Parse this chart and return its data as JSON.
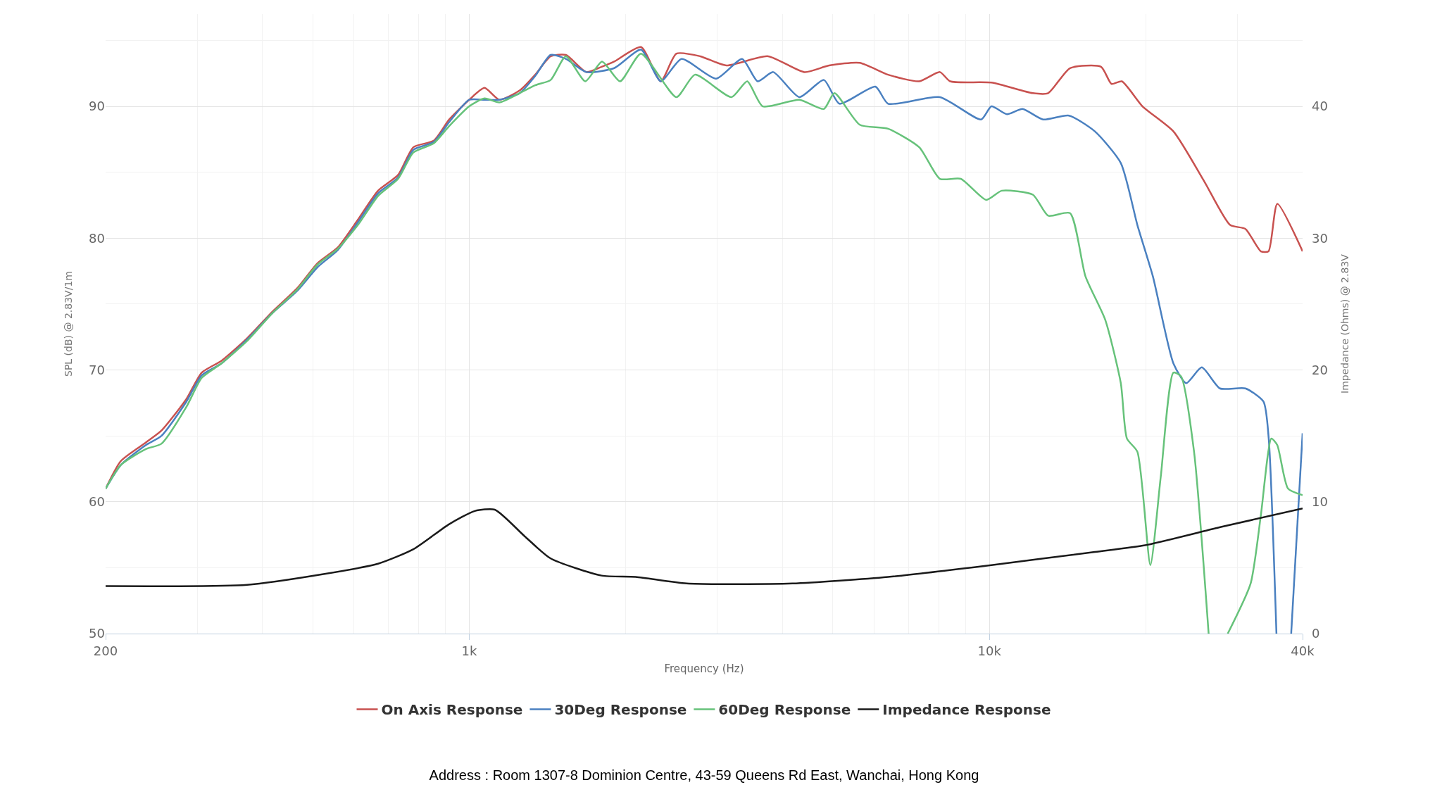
{
  "chart_data": {
    "type": "line",
    "xlabel": "Frequency (Hz)",
    "ylabel": "SPL (dB) @ 2.83V/1m",
    "y2label": "Impedance (Ohms) @ 2.83V",
    "log": "x",
    "grid": true,
    "legend": "bottom",
    "xlim": [
      200,
      40000
    ],
    "xticks": [
      200,
      {
        "value": 1000,
        "label": "1k"
      },
      {
        "value": 10000,
        "label": "10k"
      },
      {
        "value": 40000,
        "label": "40k"
      }
    ],
    "ylim": [
      50,
      97
    ],
    "yticks": [
      50,
      60,
      70,
      80,
      90
    ],
    "y2lim": [
      0,
      47
    ],
    "y2ticks": [
      0,
      10,
      20,
      30,
      40
    ],
    "series": [
      {
        "name": "On Axis Response",
        "color": "#c8514f",
        "x": [
          200,
          214,
          239,
          256,
          286,
          306,
          334,
          374,
          418,
          467,
          511,
          559,
          611,
          668,
          730,
          781,
          855,
          915,
          1000,
          1070,
          1143,
          1250,
          1339,
          1434,
          1534,
          1680,
          1797,
          1900,
          2139,
          2335,
          2502,
          2780,
          3122,
          3753,
          4410,
          4917,
          5634,
          6386,
          7330,
          8032,
          8404,
          10090,
          12120,
          12970,
          14290,
          16390,
          17170,
          17970,
          19690,
          22580,
          25890,
          29020,
          31060,
          33260,
          34400,
          35760,
          40000
        ],
        "values": [
          61.0,
          63.1,
          64.5,
          65.4,
          67.8,
          69.8,
          70.7,
          72.4,
          74.4,
          76.2,
          78.1,
          79.3,
          81.4,
          83.6,
          84.8,
          86.9,
          87.4,
          89.0,
          90.5,
          91.4,
          90.5,
          91.2,
          92.4,
          93.8,
          93.9,
          92.6,
          93.0,
          93.4,
          94.5,
          91.9,
          94.0,
          93.8,
          93.1,
          93.8,
          92.6,
          93.1,
          93.3,
          92.4,
          91.9,
          92.6,
          91.9,
          91.8,
          91.0,
          91.0,
          92.9,
          93.0,
          91.7,
          91.9,
          90.0,
          88.1,
          84.3,
          81.0,
          80.7,
          79.0,
          79.0,
          82.6,
          79.0
        ]
      },
      {
        "name": "30Deg Response",
        "color": "#4a80c0",
        "x": [
          200,
          214,
          239,
          256,
          286,
          306,
          334,
          374,
          418,
          467,
          511,
          559,
          611,
          668,
          730,
          781,
          855,
          915,
          1000,
          1070,
          1143,
          1250,
          1339,
          1434,
          1534,
          1680,
          1900,
          2139,
          2335,
          2559,
          2982,
          3347,
          3585,
          3840,
          4311,
          4806,
          5149,
          6037,
          6386,
          8032,
          9640,
          10090,
          10810,
          11580,
          12680,
          14220,
          15950,
          17890,
          19250,
          20620,
          22580,
          23900,
          25600,
          27750,
          31060,
          33640,
          34430,
          35630,
          36800,
          38030,
          40000
        ],
        "values": [
          61.0,
          62.8,
          64.3,
          65.0,
          67.6,
          69.6,
          70.5,
          72.3,
          74.3,
          76.0,
          77.8,
          79.1,
          81.2,
          83.4,
          84.6,
          86.7,
          87.3,
          88.8,
          90.5,
          90.5,
          90.5,
          91.0,
          92.3,
          93.9,
          93.6,
          92.6,
          92.9,
          94.3,
          91.9,
          93.6,
          92.1,
          93.6,
          91.9,
          92.6,
          90.7,
          92.0,
          90.2,
          91.5,
          90.2,
          90.7,
          89.0,
          90.0,
          89.4,
          89.8,
          89.0,
          89.3,
          88.1,
          85.7,
          81.0,
          77.1,
          70.5,
          69.0,
          70.2,
          68.6,
          68.6,
          67.6,
          64.8,
          50,
          null,
          50,
          65.2
        ]
      },
      {
        "name": "60Deg Response",
        "color": "#66c27a",
        "x": [
          200,
          214,
          239,
          256,
          286,
          306,
          334,
          374,
          418,
          467,
          511,
          559,
          611,
          668,
          730,
          781,
          855,
          915,
          1000,
          1070,
          1143,
          1250,
          1339,
          1434,
          1534,
          1672,
          1800,
          1950,
          2139,
          2502,
          2717,
          3193,
          3423,
          3667,
          4311,
          4806,
          5036,
          5634,
          6386,
          7330,
          8032,
          8810,
          9860,
          10560,
          12120,
          12970,
          14290,
          15300,
          16700,
          17890,
          18380,
          19250,
          20390,
          21350,
          22580,
          23370,
          24740,
          26390,
          27500,
          28720,
          31780,
          33260,
          34840,
          35760,
          37500,
          40000
        ],
        "values": [
          61.0,
          62.8,
          64.0,
          64.4,
          67.2,
          69.4,
          70.5,
          72.2,
          74.3,
          76.1,
          78.0,
          79.2,
          81.0,
          83.2,
          84.5,
          86.5,
          87.2,
          88.5,
          90.0,
          90.6,
          90.3,
          91.0,
          91.6,
          92.0,
          93.8,
          91.9,
          93.4,
          91.9,
          94.0,
          90.7,
          92.4,
          90.7,
          91.9,
          90.0,
          90.5,
          89.8,
          91.0,
          88.6,
          88.3,
          86.9,
          84.5,
          84.5,
          82.9,
          83.6,
          83.3,
          81.7,
          81.9,
          77.1,
          73.8,
          69.0,
          64.8,
          63.8,
          55.2,
          61.9,
          69.8,
          69.5,
          63.8,
          50,
          null,
          50,
          53.8,
          59.0,
          64.8,
          64.3,
          61.0,
          60.5
        ]
      },
      {
        "name": "Impedance Response",
        "color": "#1a1a1a",
        "axis": "y2",
        "x": [
          200,
          374,
          522,
          668,
          781,
          915,
          1025,
          1120,
          1277,
          1434,
          1797,
          2090,
          2619,
          4180,
          6386,
          10090,
          15950,
          19920,
          27970,
          40000
        ],
        "values": [
          3.6,
          3.7,
          4.5,
          5.3,
          6.4,
          8.3,
          9.3,
          9.4,
          7.4,
          5.7,
          4.4,
          4.3,
          3.8,
          3.8,
          4.3,
          5.2,
          6.2,
          6.7,
          8.1,
          9.5
        ]
      }
    ],
    "annotations": [
      "Address : Room 1307-8 Dominion Centre, 43-59 Queens Rd East, Wanchai, Hong Kong"
    ]
  }
}
